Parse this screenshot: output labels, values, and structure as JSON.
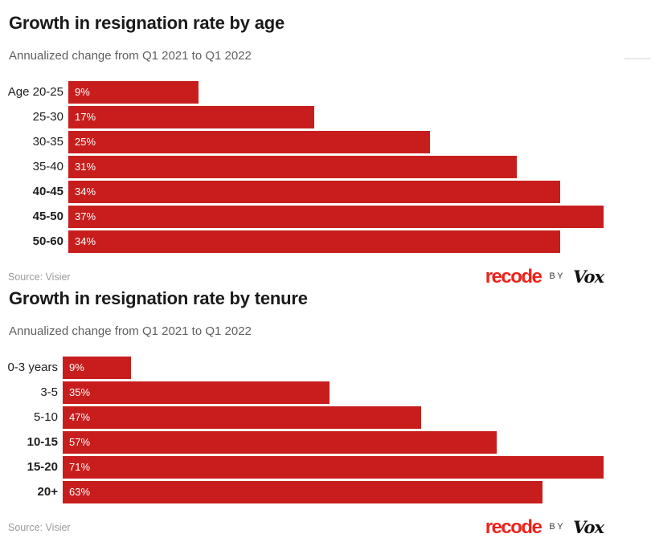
{
  "branding": {
    "recode": "recode",
    "by": "BY",
    "vox": "Vox"
  },
  "colors": {
    "bar_red": "#c71e1d",
    "recode_red": "#ee231b",
    "title_color": "#1a1a1a",
    "subtitle_gray": "#5f5f5f",
    "source_gray": "#9b9b9b"
  },
  "chart_data": [
    {
      "type": "bar",
      "orientation": "horizontal",
      "title": "Growth in resignation rate by age",
      "subtitle": "Annualized change from Q1 2021 to Q1 2022",
      "source": "Source: Visier",
      "categories": [
        "Age 20-25",
        "25-30",
        "30-35",
        "35-40",
        "40-45",
        "45-50",
        "50-60"
      ],
      "values": [
        9,
        17,
        25,
        31,
        34,
        37,
        34
      ],
      "value_labels": [
        "9%",
        "17%",
        "25%",
        "31%",
        "34%",
        "37%",
        "34%"
      ],
      "bold_categories": [
        "40-45",
        "45-50",
        "50-60"
      ],
      "xlabel": "",
      "ylabel": "",
      "xlim": [
        0,
        37
      ],
      "grid": false,
      "legend": false,
      "bar_color": "#c71e1d",
      "value_labels_position": "inside-left"
    },
    {
      "type": "bar",
      "orientation": "horizontal",
      "title": "Growth in resignation rate by tenure",
      "subtitle": "Annualized change from Q1 2021 to Q1 2022",
      "source": "Source: Visier",
      "categories": [
        "0-3 years",
        "3-5",
        "5-10",
        "10-15",
        "15-20",
        "20+"
      ],
      "values": [
        9,
        35,
        47,
        57,
        71,
        63
      ],
      "value_labels": [
        "9%",
        "35%",
        "47%",
        "57%",
        "71%",
        "63%"
      ],
      "bold_categories": [
        "10-15",
        "15-20",
        "20+"
      ],
      "xlabel": "",
      "ylabel": "",
      "xlim": [
        0,
        71
      ],
      "grid": false,
      "legend": false,
      "bar_color": "#c71e1d",
      "value_labels_position": "inside-left"
    }
  ]
}
